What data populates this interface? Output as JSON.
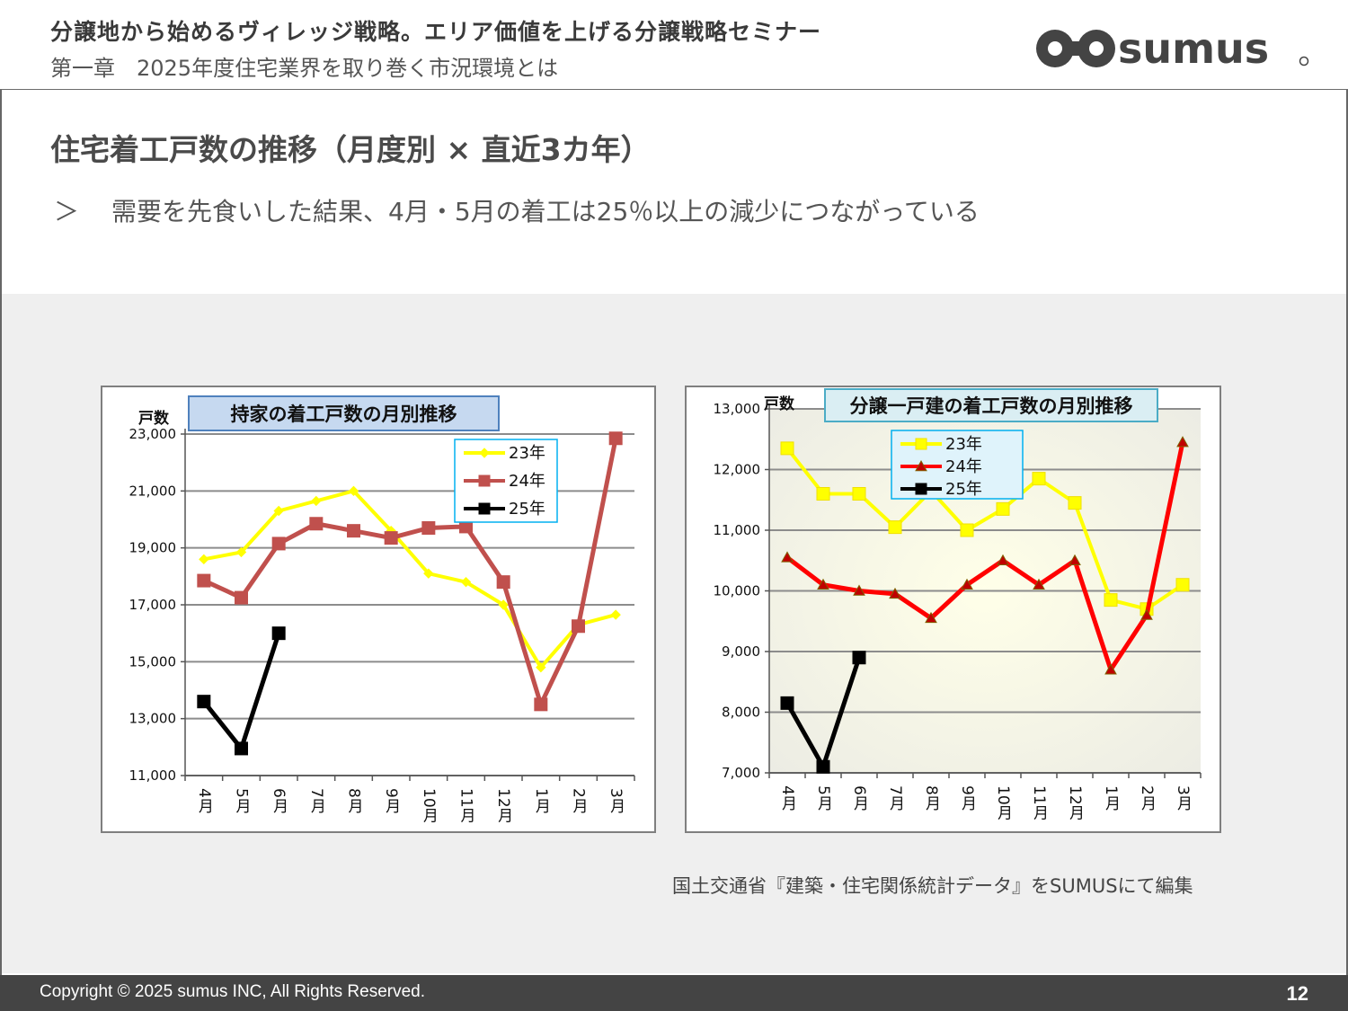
{
  "header": {
    "title": "分譲地から始めるヴィレッジ戦略。エリア価値を上げる分譲戦略セミナー",
    "chapter": "第一章　2025年度住宅業界を取り巻く市況環境とは",
    "logo_text": "sumus"
  },
  "slide": {
    "title": "住宅着工戸数の推移（月度別 × 直近3カ年）",
    "bullet_mark": "＞",
    "bullet_text": "需要を先食いした結果、4月・5月の着工は25％以上の減少につながっている"
  },
  "source_text": "国土交通省『建築・住宅関係統計データ』をSUMUSにて編集",
  "footer": {
    "copyright": "Copyright © 2025 sumus INC, All Rights Reserved.",
    "page_number": "12"
  },
  "colors": {
    "y23": "#ffff00",
    "y24_left": "#c0504d",
    "y24_right": "#ff0000",
    "y25": "#000000",
    "title_box_left": "#c6d9f0",
    "title_box_right": "#daeef3",
    "legend_border": "#00b0f0"
  },
  "chart_data": [
    {
      "type": "line",
      "title": "持家の着工戸数の月別推移",
      "ylabel": "戸数",
      "categories": [
        "4月",
        "5月",
        "6月",
        "7月",
        "8月",
        "9月",
        "10月",
        "11月",
        "12月",
        "1月",
        "2月",
        "3月"
      ],
      "ylim": [
        11000,
        23000
      ],
      "yticks": [
        11000,
        13000,
        15000,
        17000,
        19000,
        21000,
        23000
      ],
      "ytick_labels": [
        "11,000",
        "13,000",
        "15,000",
        "17,000",
        "19,000",
        "21,000",
        "23,000"
      ],
      "grid": true,
      "legend": "top-right",
      "series": [
        {
          "name": "23年",
          "marker": "diamond",
          "color_key": "y23",
          "values": [
            18600,
            18850,
            20300,
            20650,
            21000,
            19600,
            18100,
            17800,
            17000,
            14800,
            16300,
            16650
          ]
        },
        {
          "name": "24年",
          "marker": "square",
          "color_key": "y24_left",
          "values": [
            17850,
            17250,
            19150,
            19850,
            19600,
            19350,
            19700,
            19750,
            17800,
            13500,
            16250,
            22850
          ]
        },
        {
          "name": "25年",
          "marker": "square",
          "color_key": "y25",
          "values": [
            13600,
            11950,
            16000,
            null,
            null,
            null,
            null,
            null,
            null,
            null,
            null,
            null
          ]
        }
      ]
    },
    {
      "type": "line",
      "title": "分譲一戸建の着工戸数の月別推移",
      "ylabel": "戸数",
      "categories": [
        "4月",
        "5月",
        "6月",
        "7月",
        "8月",
        "9月",
        "10月",
        "11月",
        "12月",
        "1月",
        "2月",
        "3月"
      ],
      "ylim": [
        7000,
        13000
      ],
      "yticks": [
        7000,
        8000,
        9000,
        10000,
        11000,
        12000,
        13000
      ],
      "ytick_labels": [
        "7,000",
        "8,000",
        "9,000",
        "10,000",
        "11,000",
        "12,000",
        "13,000"
      ],
      "grid": true,
      "legend": "top-center",
      "series": [
        {
          "name": "23年",
          "marker": "square",
          "color_key": "y23",
          "values": [
            12350,
            11600,
            11600,
            11050,
            11650,
            11000,
            11350,
            11850,
            11450,
            9850,
            9700,
            10100
          ]
        },
        {
          "name": "24年",
          "marker": "triangle",
          "color_key": "y24_right",
          "values": [
            10550,
            10100,
            10000,
            9950,
            9550,
            10100,
            10500,
            10100,
            10500,
            8700,
            9600,
            12450
          ]
        },
        {
          "name": "25年",
          "marker": "square",
          "color_key": "y25",
          "values": [
            8150,
            7100,
            8900,
            null,
            null,
            null,
            null,
            null,
            null,
            null,
            null,
            null
          ]
        }
      ]
    }
  ]
}
